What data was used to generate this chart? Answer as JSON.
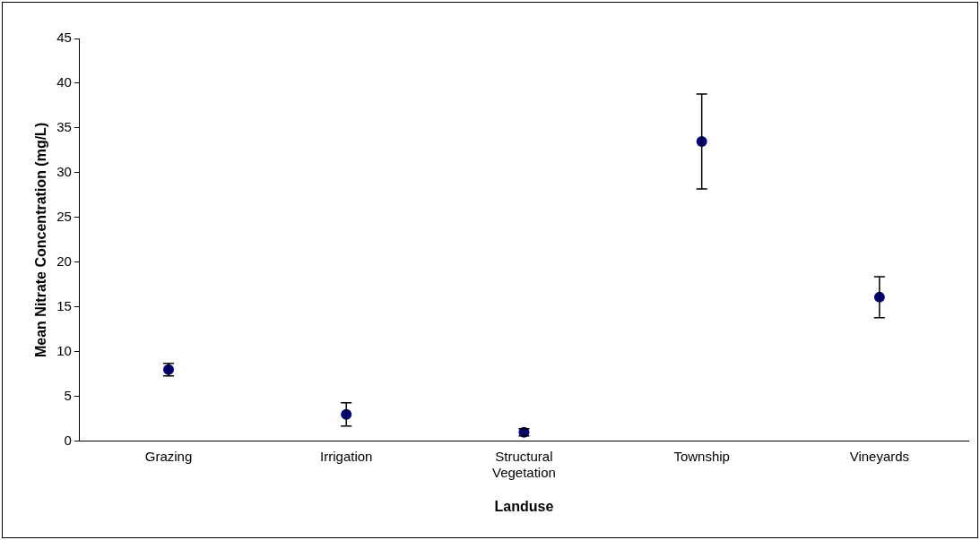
{
  "chart_data": {
    "type": "scatter",
    "xlabel": "Landuse",
    "ylabel": "Mean Nitrate Concentration (mg/L)",
    "categories": [
      "Grazing",
      "Irrigation",
      "Structural Vegetation",
      "Township",
      "Vineyards"
    ],
    "values": [
      8.0,
      3.0,
      1.0,
      33.5,
      16.1
    ],
    "errors": [
      0.7,
      1.3,
      0.4,
      5.3,
      2.3
    ],
    "color": "#000080",
    "marker": "circle",
    "grid": false,
    "legend": false,
    "ylim": [
      0,
      45
    ],
    "yticks": [
      0,
      5,
      10,
      15,
      20,
      25,
      30,
      35,
      40,
      45
    ]
  }
}
